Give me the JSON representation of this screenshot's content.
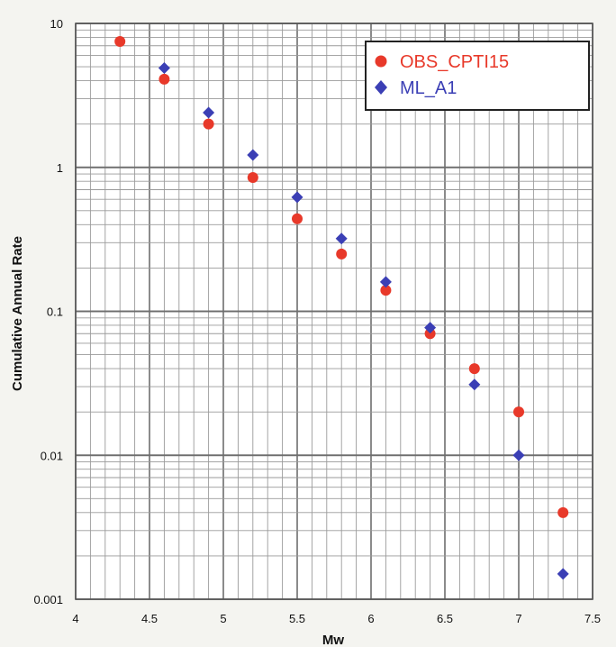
{
  "chart_data": {
    "type": "scatter",
    "xlabel": "Mw",
    "ylabel": "Cumulative Annual Rate",
    "xlim": [
      4,
      7.5
    ],
    "ylim": [
      0.001,
      10
    ],
    "yscale": "log",
    "grid": true,
    "legend_position": "top-right",
    "x_ticks": [
      "4",
      "4.5",
      "5",
      "5.5",
      "6",
      "6.5",
      "7",
      "7.5"
    ],
    "y_ticks": [
      "0.001",
      "0.01",
      "0.1",
      "1",
      "10"
    ],
    "series": [
      {
        "name": "OBS_CPTI15",
        "marker": "circle",
        "color": "#e8392a",
        "x": [
          4.3,
          4.6,
          4.9,
          5.2,
          5.5,
          5.8,
          6.1,
          6.4,
          6.7,
          7.0,
          7.3
        ],
        "y": [
          7.5,
          4.1,
          2.0,
          0.85,
          0.44,
          0.25,
          0.14,
          0.07,
          0.04,
          0.02,
          0.004
        ]
      },
      {
        "name": "ML_A1",
        "marker": "diamond",
        "color": "#3b3fb5",
        "x": [
          4.6,
          4.9,
          5.2,
          5.5,
          5.8,
          6.1,
          6.4,
          6.7,
          7.0,
          7.3
        ],
        "y": [
          4.9,
          2.4,
          1.22,
          0.62,
          0.32,
          0.16,
          0.077,
          0.031,
          0.01,
          0.0015
        ]
      }
    ]
  }
}
